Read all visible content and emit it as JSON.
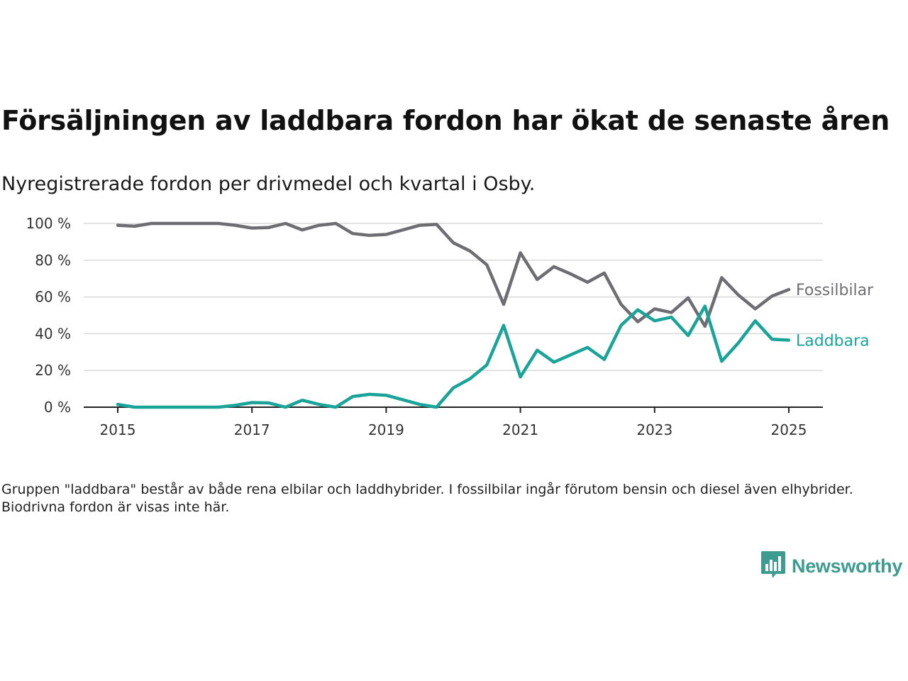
{
  "title": "Försäljningen av laddbara fordon har ökat de senaste åren",
  "subtitle": "Nyregistrerade fordon per drivmedel och kvartal i Osby.",
  "note": "Gruppen \"laddbara\" består av både rena elbilar och laddhybrider. I fossilbilar ingår förutom bensin och diesel även elhybrider. Biodrivna fordon är visas inte här.",
  "brand": {
    "name": "Newsworthy",
    "color": "#3d9b8f",
    "icon": "newsworthy-logo-icon"
  },
  "chart_data": {
    "type": "line",
    "title": "Försäljningen av laddbara fordon har ökat de senaste åren",
    "subtitle": "Nyregistrerade fordon per drivmedel och kvartal i Osby.",
    "xlabel": "",
    "ylabel": "",
    "xlim": [
      2014.75,
      2025.25
    ],
    "ylim": [
      0,
      100
    ],
    "grid": true,
    "legend": "inline-right",
    "x_ticks": [
      "2015",
      "2017",
      "2019",
      "2021",
      "2023",
      "2025"
    ],
    "y_ticks": [
      "0 %",
      "20 %",
      "40 %",
      "60 %",
      "80 %",
      "100 %"
    ],
    "x": [
      "2015 Q1",
      "2015 Q2",
      "2015 Q3",
      "2015 Q4",
      "2016 Q1",
      "2016 Q2",
      "2016 Q3",
      "2016 Q4",
      "2017 Q1",
      "2017 Q2",
      "2017 Q3",
      "2017 Q4",
      "2018 Q1",
      "2018 Q2",
      "2018 Q3",
      "2018 Q4",
      "2019 Q1",
      "2019 Q2",
      "2019 Q3",
      "2019 Q4",
      "2020 Q1",
      "2020 Q2",
      "2020 Q3",
      "2020 Q4",
      "2021 Q1",
      "2021 Q2",
      "2021 Q3",
      "2021 Q4",
      "2022 Q1",
      "2022 Q2",
      "2022 Q3",
      "2022 Q4",
      "2023 Q1",
      "2023 Q2",
      "2023 Q3",
      "2023 Q4",
      "2024 Q1",
      "2024 Q2",
      "2024 Q3",
      "2024 Q4",
      "2025 Q1"
    ],
    "series": [
      {
        "name": "Fossilbilar",
        "color": "#6e6d72",
        "values": [
          99,
          98.5,
          100,
          100,
          100,
          100,
          100,
          99,
          97.5,
          97.8,
          100,
          96.5,
          99,
          100,
          94.5,
          93.5,
          94,
          96.5,
          99,
          99.5,
          89.5,
          85,
          77.5,
          56,
          84,
          69.5,
          76.5,
          72.5,
          68,
          73,
          56,
          46.5,
          53.5,
          51.5,
          59.5,
          44,
          70.5,
          61,
          53.5,
          60.5,
          64
        ]
      },
      {
        "name": "Laddbara",
        "color": "#1aa398",
        "values": [
          1.5,
          0,
          0,
          0,
          0,
          0,
          0,
          1,
          2.5,
          2.3,
          0,
          3.8,
          1.5,
          0,
          5.8,
          7,
          6.5,
          4,
          1.5,
          0,
          10.5,
          15.5,
          23,
          44.5,
          16.5,
          31,
          24.5,
          28.5,
          32.5,
          26,
          44.5,
          53,
          47,
          49,
          39,
          55,
          25,
          35,
          47,
          37,
          36.5
        ]
      }
    ]
  }
}
